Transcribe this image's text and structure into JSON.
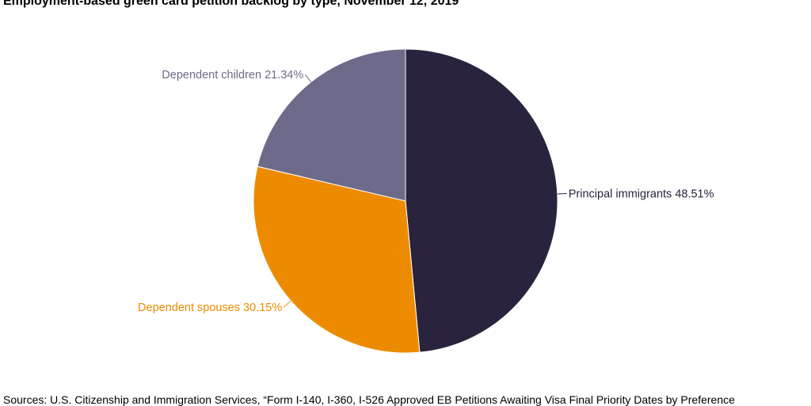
{
  "chart_data": {
    "type": "pie",
    "title": "Employment-based green card petition backlog by type, November 12, 2019",
    "slices": [
      {
        "label": "Principal immigrants",
        "value": 48.51,
        "value_label": "48.51%",
        "color": "#29233d"
      },
      {
        "label": "Dependent spouses",
        "value": 30.15,
        "value_label": "30.15%",
        "color": "#ed8b00"
      },
      {
        "label": "Dependent children",
        "value": 21.34,
        "value_label": "21.34%",
        "color": "#6e6a89"
      }
    ],
    "label_colors": {
      "Principal immigrants": "#29233d",
      "Dependent spouses": "#ed8b00",
      "Dependent children": "#6e6a89"
    },
    "source": "Sources: U.S. Citizenship and Immigration Services, “Form I-140, I-360, I-526 Approved EB Petitions Awaiting Visa Final Priority Dates by Preference"
  }
}
